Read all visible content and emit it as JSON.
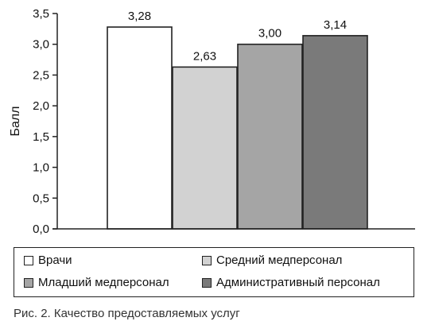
{
  "chart_data": {
    "type": "bar",
    "title": "",
    "xlabel": "",
    "ylabel": "Балл",
    "ylim": [
      0,
      3.5
    ],
    "y_ticks": [
      "0,0",
      "0,5",
      "1,0",
      "1,5",
      "2,0",
      "2,5",
      "3,0",
      "3,5"
    ],
    "grid": false,
    "legend_position": "bottom",
    "series": [
      {
        "name": "Врачи",
        "value": 3.28,
        "label": "3,28",
        "color": "#ffffff"
      },
      {
        "name": "Средний медперсонал",
        "value": 2.63,
        "label": "2,63",
        "color": "#d2d2d2"
      },
      {
        "name": "Младший медперсонал",
        "value": 3.0,
        "label": "3,00",
        "color": "#a5a5a5"
      },
      {
        "name": "Административный персонал",
        "value": 3.14,
        "label": "3,14",
        "color": "#7a7a7a"
      }
    ]
  },
  "caption": "Рис. 2. Качество предоставляемых услуг"
}
